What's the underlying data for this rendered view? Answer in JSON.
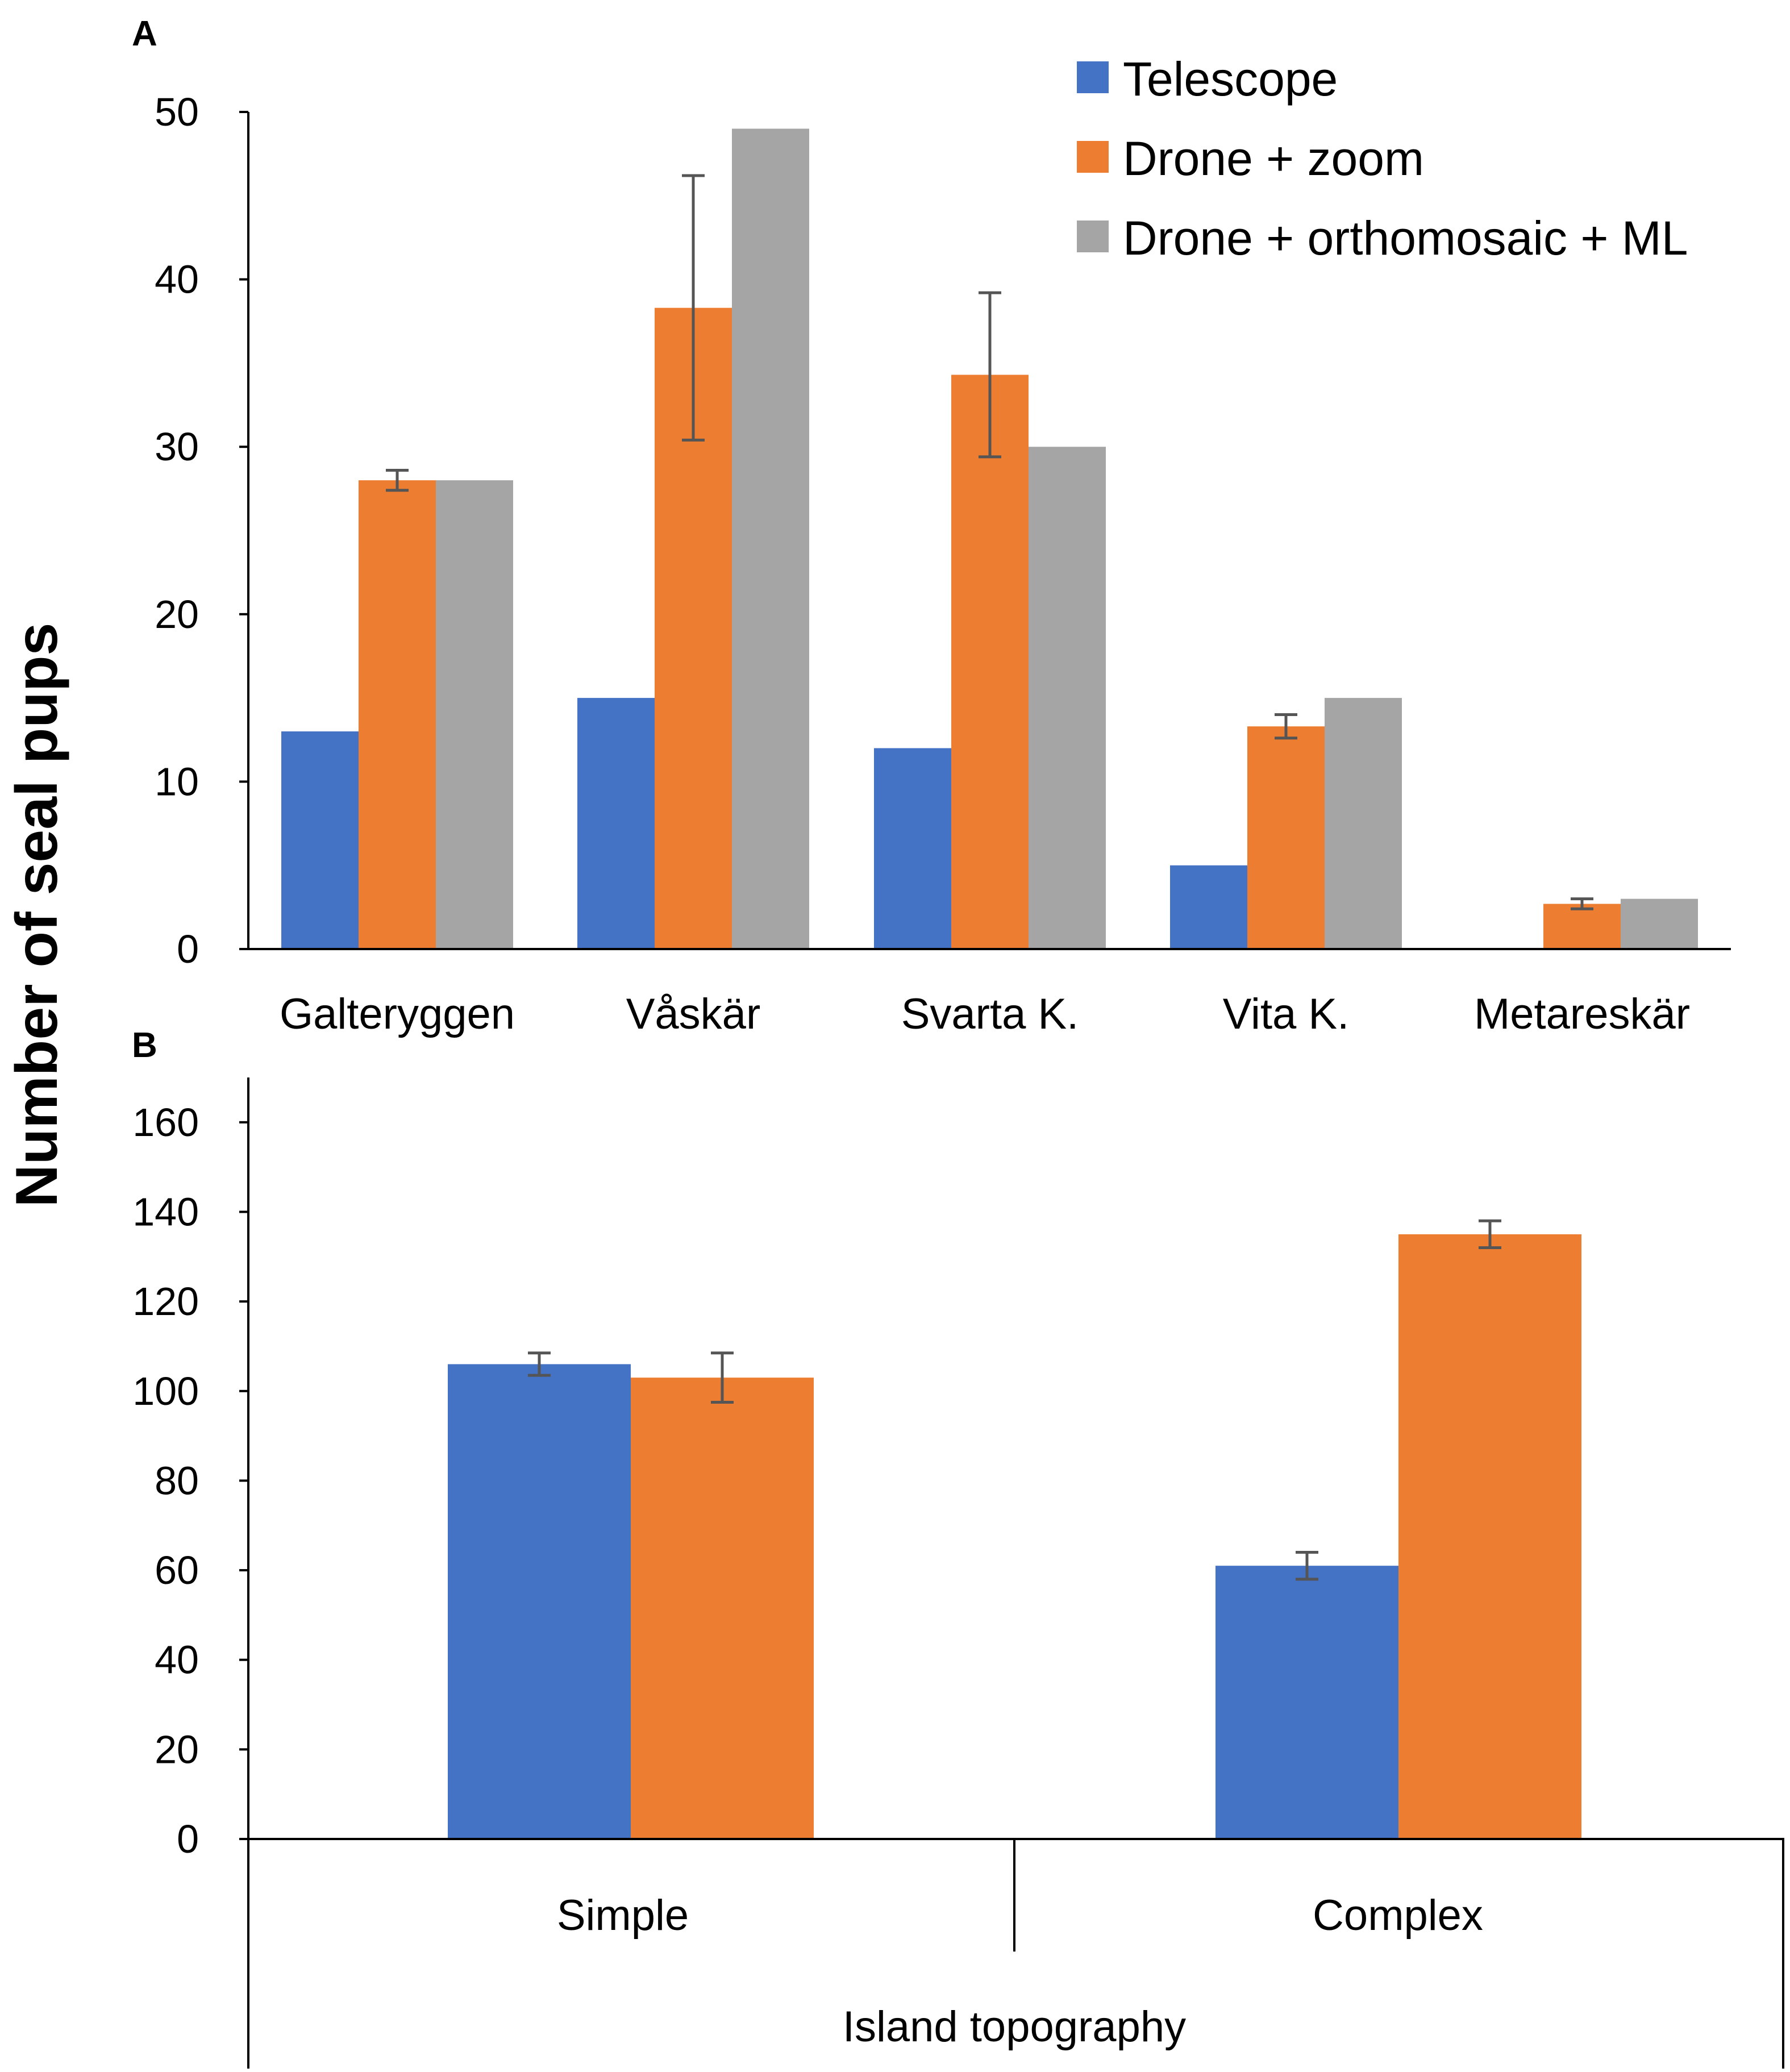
{
  "figure": {
    "ylabel": "Number of seal pups"
  },
  "colors": {
    "telescope": "#4472C4",
    "drone_zoom": "#ED7D31",
    "drone_ortho": "#A5A5A5"
  },
  "chart_data": [
    {
      "panel": "A",
      "type": "bar",
      "categories": [
        "Galteryggen",
        "Våskär",
        "Svarta K.",
        "Vita K.",
        "Metareskär"
      ],
      "ylim": [
        0,
        50
      ],
      "yticks": [
        0,
        10,
        20,
        30,
        40,
        50
      ],
      "ylabel": "Number of seal pups",
      "xlabel": "",
      "legend_position": "top-right",
      "series": [
        {
          "name": "Telescope",
          "color": "#4472C4",
          "values": [
            13,
            15,
            12,
            5,
            0
          ],
          "errors": [
            null,
            null,
            null,
            null,
            null
          ]
        },
        {
          "name": "Drone + zoom",
          "color": "#ED7D31",
          "values": [
            28,
            38.3,
            34.3,
            13.3,
            2.7
          ],
          "errors": [
            0.6,
            7.9,
            4.9,
            0.7,
            0.3
          ]
        },
        {
          "name": "Drone + orthomosaic + ML",
          "color": "#A5A5A5",
          "values": [
            28,
            49,
            30,
            15,
            3
          ],
          "errors": [
            null,
            null,
            null,
            null,
            null
          ]
        }
      ]
    },
    {
      "panel": "B",
      "type": "bar",
      "categories": [
        "Simple",
        "Complex"
      ],
      "ylim": [
        0,
        170
      ],
      "yticks": [
        0,
        20,
        40,
        60,
        80,
        100,
        120,
        140,
        160
      ],
      "xlabel": "Island topography",
      "ylabel": "Number of seal pups",
      "series": [
        {
          "name": "Telescope",
          "color": "#4472C4",
          "values": [
            106,
            61
          ],
          "errors": [
            2.5,
            3
          ]
        },
        {
          "name": "Drone + zoom",
          "color": "#ED7D31",
          "values": [
            103,
            135
          ],
          "errors": [
            5.5,
            3
          ]
        }
      ]
    }
  ]
}
